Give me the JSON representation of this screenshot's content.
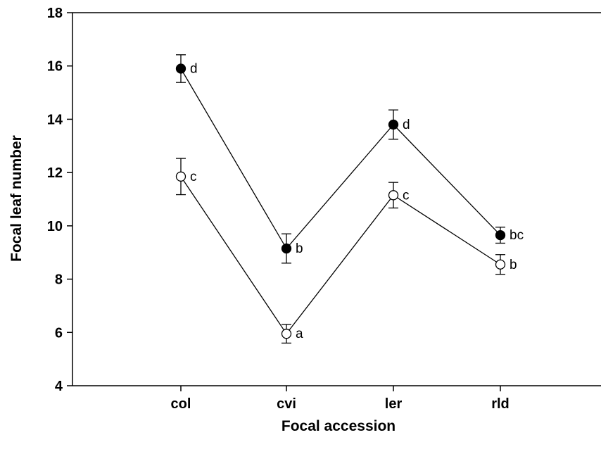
{
  "chart_data": {
    "type": "line",
    "xlabel": "Focal accession",
    "ylabel": "Focal leaf number",
    "categories": [
      "col",
      "cvi",
      "ler",
      "rld"
    ],
    "ylim": [
      4,
      18
    ],
    "yticks": [
      4,
      6,
      8,
      10,
      12,
      14,
      16,
      18
    ],
    "grid": false,
    "legend": "none",
    "series": [
      {
        "marker": "filled-circle",
        "color": "#000000",
        "values": [
          15.9,
          9.15,
          13.8,
          9.65
        ],
        "errors": [
          0.52,
          0.55,
          0.55,
          0.3
        ],
        "labels": [
          "d",
          "b",
          "d",
          "bc"
        ]
      },
      {
        "marker": "open-circle",
        "color": "#000000",
        "values": [
          11.85,
          5.95,
          11.15,
          8.55
        ],
        "errors": [
          0.68,
          0.35,
          0.48,
          0.37
        ],
        "labels": [
          "c",
          "a",
          "c",
          "b"
        ]
      }
    ]
  }
}
